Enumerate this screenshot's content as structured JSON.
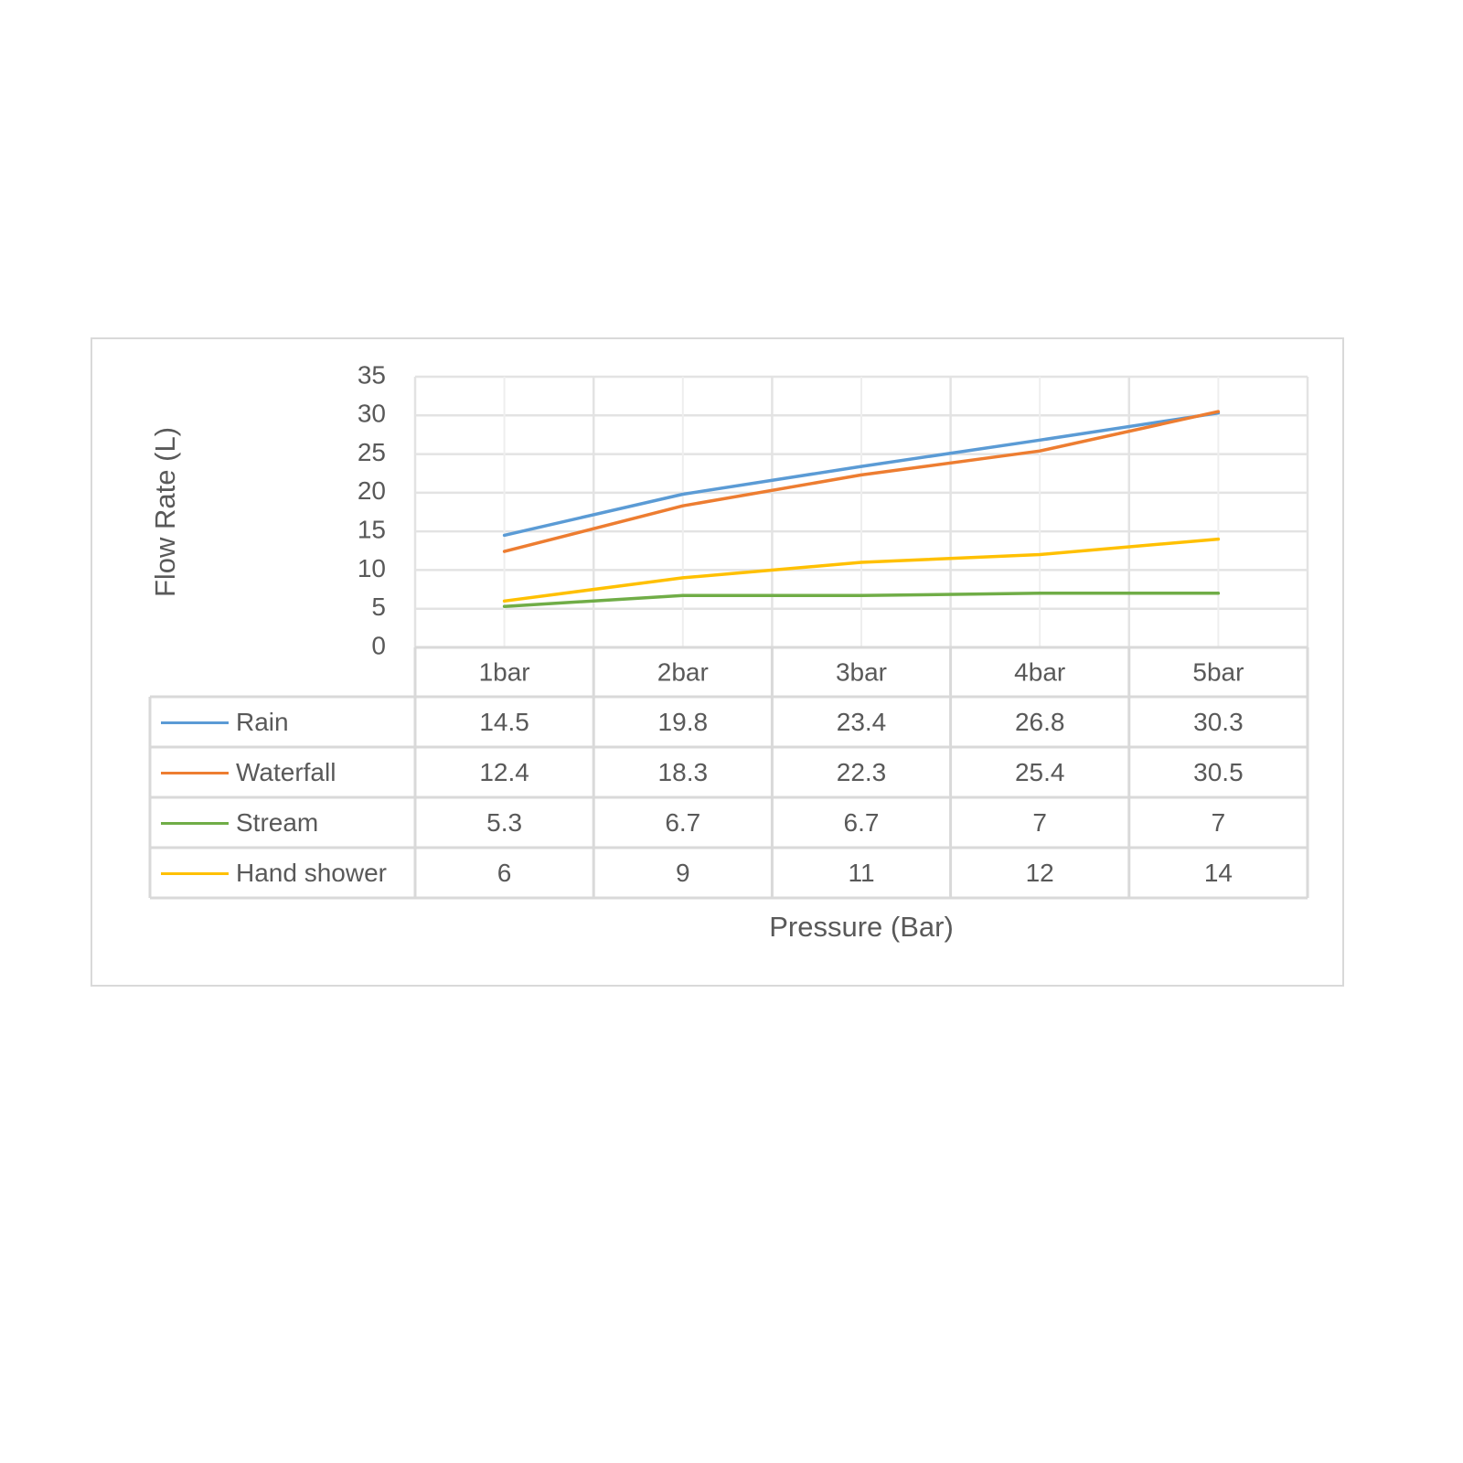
{
  "chart_data": {
    "type": "line",
    "xlabel": "Pressure (Bar)",
    "ylabel": "Flow Rate (L)",
    "categories": [
      "1bar",
      "2bar",
      "3bar",
      "4bar",
      "5bar"
    ],
    "ylim": [
      0,
      35
    ],
    "yticks": [
      0,
      5,
      10,
      15,
      20,
      25,
      30,
      35
    ],
    "grid": true,
    "legend": "data-table",
    "series": [
      {
        "name": "Rain",
        "color": "#5b9bd5",
        "values": [
          14.5,
          19.8,
          23.4,
          26.8,
          30.3
        ],
        "labels": [
          "14.5",
          "19.8",
          "23.4",
          "26.8",
          "30.3"
        ]
      },
      {
        "name": "Waterfall",
        "color": "#ed7d31",
        "values": [
          12.4,
          18.3,
          22.3,
          25.4,
          30.5
        ],
        "labels": [
          "12.4",
          "18.3",
          "22.3",
          "25.4",
          "30.5"
        ]
      },
      {
        "name": "Stream",
        "color": "#70ad47",
        "values": [
          5.3,
          6.7,
          6.7,
          7,
          7
        ],
        "labels": [
          "5.3",
          "6.7",
          "6.7",
          "7",
          "7"
        ]
      },
      {
        "name": "Hand shower",
        "color": "#ffc000",
        "values": [
          6,
          9,
          11,
          12,
          14
        ],
        "labels": [
          "6",
          "9",
          "11",
          "12",
          "14"
        ]
      }
    ]
  }
}
